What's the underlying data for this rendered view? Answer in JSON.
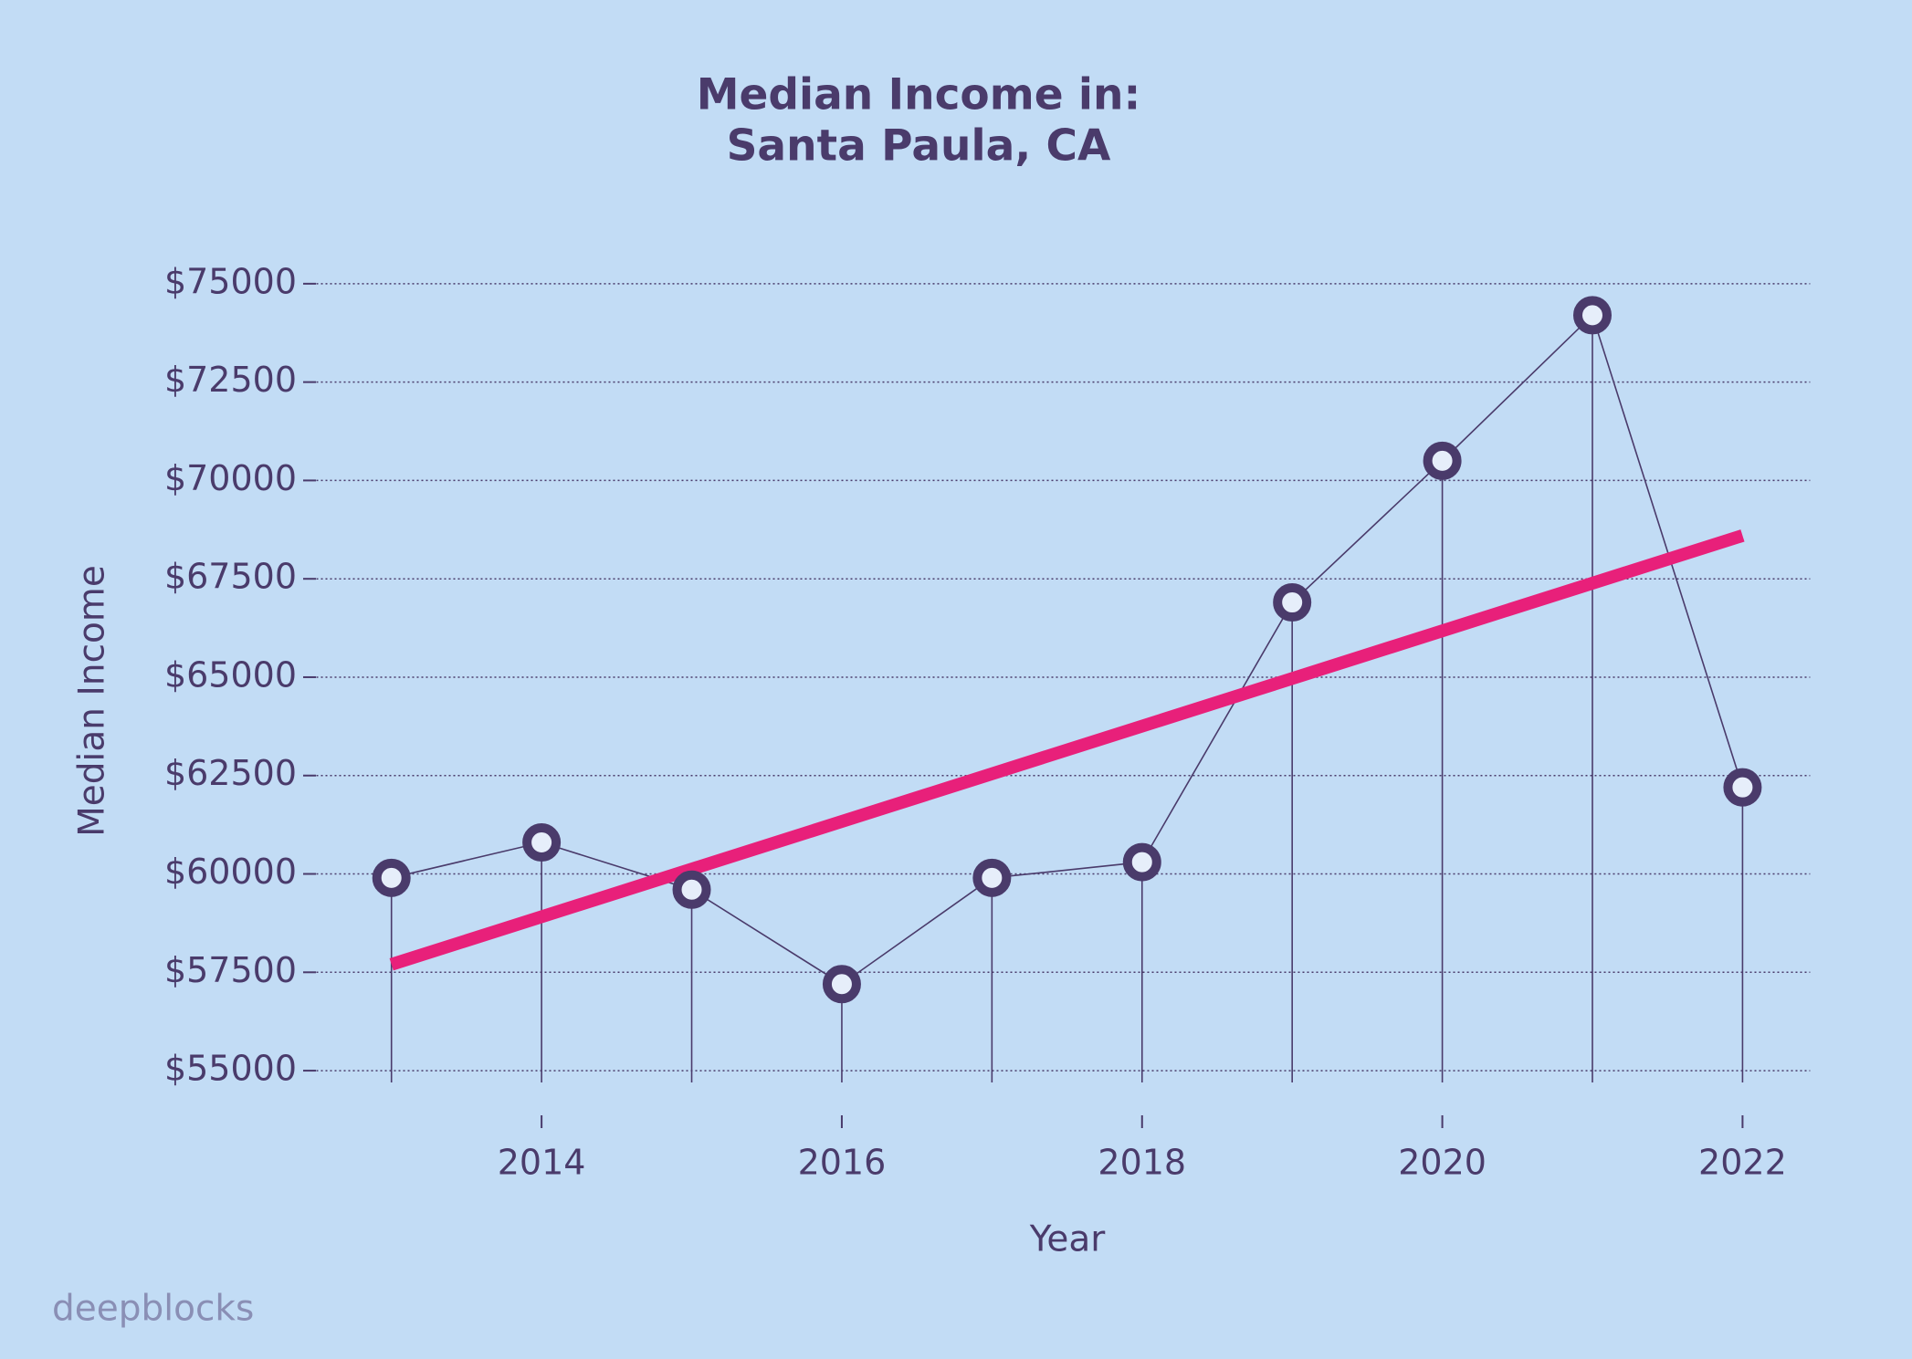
{
  "chart_data": {
    "type": "line",
    "title": [
      "Median Income in:",
      "Santa Paula, CA"
    ],
    "x_label": "Year",
    "y_label": "Median Income",
    "watermark": "deepblocks",
    "x": [
      2013,
      2014,
      2015,
      2016,
      2017,
      2018,
      2019,
      2020,
      2021,
      2022
    ],
    "series": [
      {
        "color": "#4a3b6b",
        "values": [
          59900,
          60800,
          59600,
          57200,
          59900,
          60300,
          66900,
          70500,
          74200,
          62200
        ]
      }
    ],
    "trend": {
      "color": "#e8207a",
      "x": [
        2013,
        2022
      ],
      "values": [
        57700,
        68600
      ]
    },
    "xlim": [
      2012.5,
      2022.45
    ],
    "xticks": [
      2014,
      2016,
      2018,
      2020,
      2022
    ],
    "ylim": [
      54700,
      75600
    ],
    "yticks": [
      {
        "value": 55000,
        "label": "$55000"
      },
      {
        "value": 57500,
        "label": "$57500"
      },
      {
        "value": 60000,
        "label": "$60000"
      },
      {
        "value": 62500,
        "label": "$62500"
      },
      {
        "value": 65000,
        "label": "$65000"
      },
      {
        "value": 67500,
        "label": "$67500"
      },
      {
        "value": 70000,
        "label": "$70000"
      },
      {
        "value": 72500,
        "label": "$72500"
      },
      {
        "value": 75000,
        "label": "$75000"
      }
    ],
    "grid": true
  }
}
